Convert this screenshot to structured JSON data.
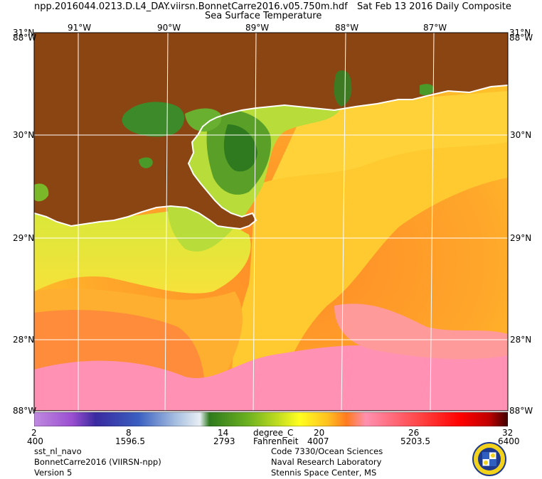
{
  "header": {
    "filename": "npp.2016044.0213.D.L4_DAY.viirsn.BonnetCarre2016.v05.750m.hdf",
    "date": "Sat Feb 13 2016 Daily Composite",
    "product": "Sea Surface Temperature"
  },
  "map": {
    "lon_labels": [
      "91°W",
      "90°W",
      "89°W",
      "88°W",
      "87°W"
    ],
    "lat_labels": [
      "30°N",
      "29°N",
      "28°N"
    ],
    "corner_labels": {
      "top_left": "31°N",
      "top_left_b": "88°W",
      "top_right": "31°N",
      "top_right_b": "88°W",
      "bottom_left": "88°W",
      "bottom_right": "88°W"
    },
    "colors": {
      "land": "#8b4513",
      "graticule": "#ffffff",
      "coast": "#ffffff"
    }
  },
  "colorbar": {
    "celsius_ticks": [
      "2",
      "8",
      "14",
      "20",
      "26",
      "32"
    ],
    "unit_c": "degree_C",
    "fahrenheit_ticks": [
      "400",
      "1596.5",
      "2793",
      "4007",
      "5203.5",
      "6400"
    ],
    "unit_f": "Fahrenheit",
    "stops": [
      "#c08ae0",
      "#9a4fd0",
      "#3a2aa0",
      "#3a5fc0",
      "#a8c0e0",
      "#e8eef4",
      "#2f7a1e",
      "#6ab020",
      "#c8e020",
      "#ffff20",
      "#ffc020",
      "#ff7a20",
      "#ff90b0",
      "#ff4040",
      "#ff0000",
      "#c00000",
      "#400000"
    ]
  },
  "footer": {
    "left": [
      "sst_nl_navo",
      "BonnetCarre2016 (VIIRSN-npp)",
      "Version 5"
    ],
    "center": [
      "Code 7330/Ocean Sciences",
      "Naval Research Laboratory",
      "Stennis Space Center, MS"
    ]
  }
}
